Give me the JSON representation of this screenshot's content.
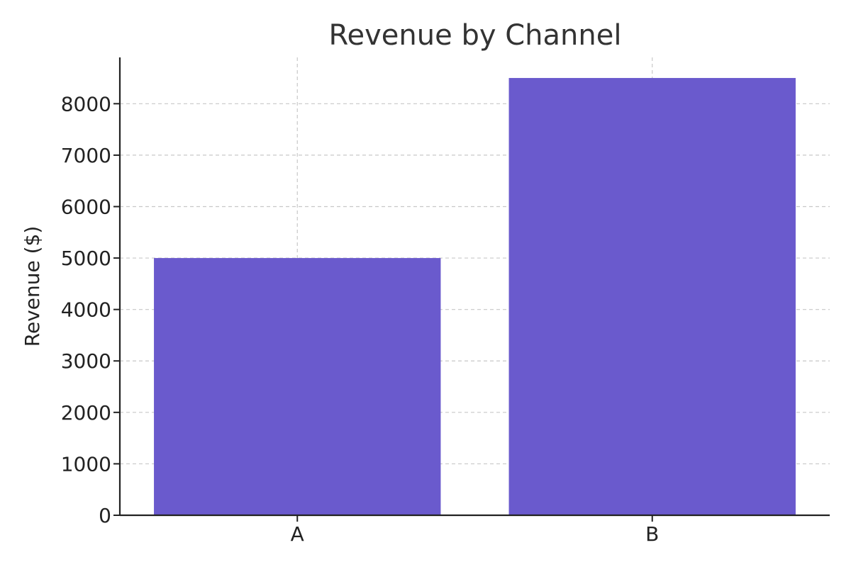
{
  "chart_data": {
    "type": "bar",
    "title": "Revenue by Channel",
    "xlabel": "",
    "ylabel": "Revenue ($)",
    "categories": [
      "A",
      "B"
    ],
    "values": [
      5000,
      8500
    ],
    "ylim": [
      0,
      8900
    ],
    "yticks": [
      0,
      1000,
      2000,
      3000,
      4000,
      5000,
      6000,
      7000,
      8000
    ],
    "grid": true,
    "bar_color": "#6a5acd"
  }
}
